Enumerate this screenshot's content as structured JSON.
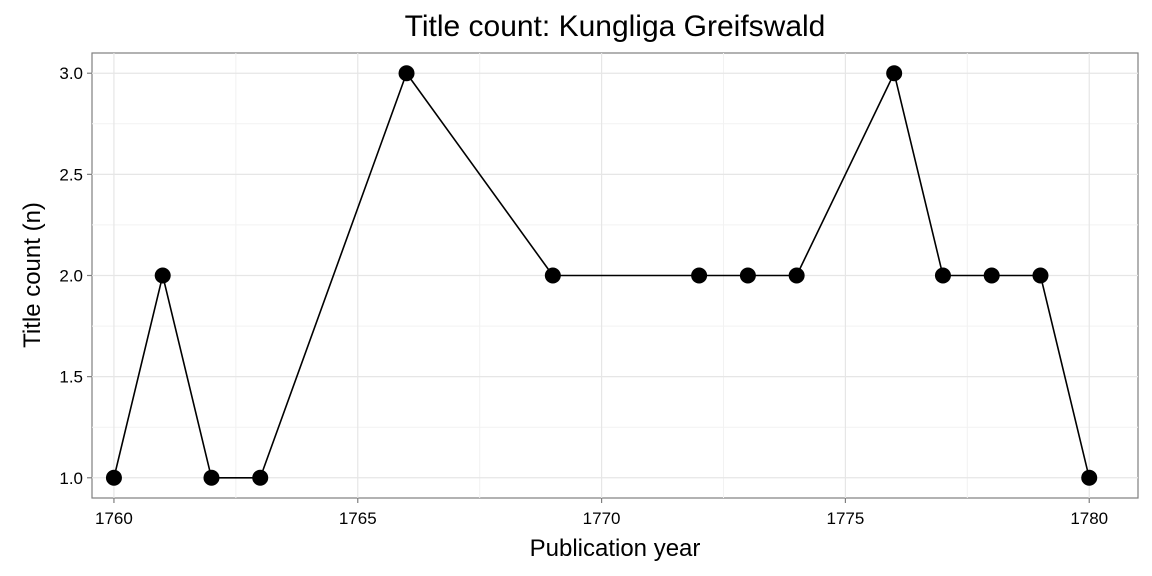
{
  "chart_data": {
    "type": "line",
    "title": "Title count: Kungliga Greifswald",
    "xlabel": "Publication year",
    "ylabel": "Title count (n)",
    "xlim": [
      1759.55,
      1781.0
    ],
    "ylim": [
      0.9,
      3.1
    ],
    "x_ticks": [
      1760,
      1765,
      1770,
      1775,
      1780
    ],
    "y_ticks": [
      1.0,
      1.5,
      2.0,
      2.5,
      3.0
    ],
    "y_tick_labels": [
      "1.0",
      "1.5",
      "2.0",
      "2.5",
      "3.0"
    ],
    "grid": true,
    "series": [
      {
        "x": [
          1760,
          1761,
          1762,
          1763,
          1766,
          1769,
          1772,
          1773,
          1774,
          1776,
          1777,
          1778,
          1779,
          1780
        ],
        "y": [
          1,
          2,
          1,
          1,
          3,
          2,
          2,
          2,
          2,
          3,
          2,
          2,
          2,
          1
        ]
      }
    ]
  }
}
